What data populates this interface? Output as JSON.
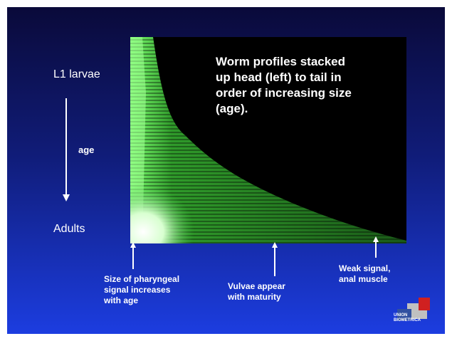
{
  "image_caption": [
    "Worm profiles stacked",
    "up head (left) to tail in",
    "order of increasing size",
    "(age)."
  ],
  "top_label": "L1 larvae",
  "arrow_label": "age",
  "bottom_label": "Adults",
  "annotations": [
    {
      "lines": [
        "Size of pharyngeal",
        "signal increases",
        "with age"
      ]
    },
    {
      "lines": [
        "Vulvae appear",
        "with maturity"
      ]
    },
    {
      "lines": [
        "Weak signal,",
        "anal muscle"
      ]
    }
  ],
  "logo": [
    "UNION",
    "BIOMETRICA"
  ]
}
